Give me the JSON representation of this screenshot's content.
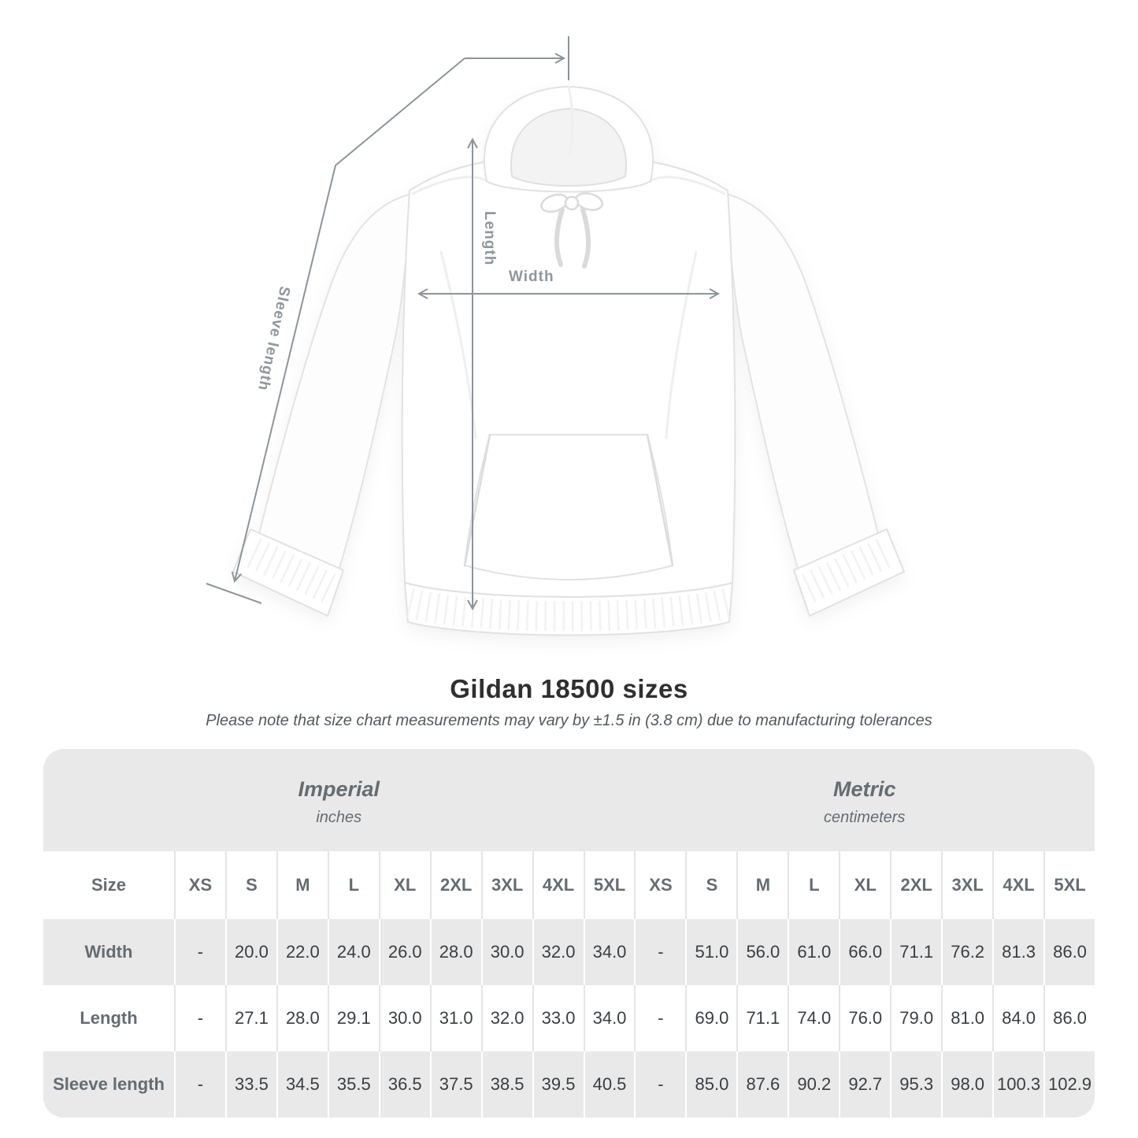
{
  "title": "Gildan 18500 sizes",
  "note": "Please note that size chart measurements may vary by ±1.5 in (3.8 cm) due to manufacturing tolerances",
  "diagram": {
    "labels": {
      "length": "Length",
      "width": "Width",
      "sleeve_length": "Sleeve length"
    }
  },
  "colors": {
    "arrow": "#8d949a",
    "mlabel": "#8f969c",
    "band": "#e9e9e9",
    "head-text": "#656c72",
    "value-text": "#3a3e42",
    "title-text": "#2f2f2f",
    "note-text": "#54585d"
  },
  "table": {
    "size_header": "Size",
    "unit_groups": [
      {
        "label": "Imperial",
        "sublabel": "inches"
      },
      {
        "label": "Metric",
        "sublabel": "centimeters"
      }
    ],
    "sizes": [
      "XS",
      "S",
      "M",
      "L",
      "XL",
      "2XL",
      "3XL",
      "4XL",
      "5XL"
    ],
    "rows": [
      {
        "label": "Width",
        "imperial": [
          "-",
          "20.0",
          "22.0",
          "24.0",
          "26.0",
          "28.0",
          "30.0",
          "32.0",
          "34.0"
        ],
        "metric": [
          "-",
          "51.0",
          "56.0",
          "61.0",
          "66.0",
          "71.1",
          "76.2",
          "81.3",
          "86.0"
        ]
      },
      {
        "label": "Length",
        "imperial": [
          "-",
          "27.1",
          "28.0",
          "29.1",
          "30.0",
          "31.0",
          "32.0",
          "33.0",
          "34.0"
        ],
        "metric": [
          "-",
          "69.0",
          "71.1",
          "74.0",
          "76.0",
          "79.0",
          "81.0",
          "84.0",
          "86.0"
        ]
      },
      {
        "label": "Sleeve length",
        "imperial": [
          "-",
          "33.5",
          "34.5",
          "35.5",
          "36.5",
          "37.5",
          "38.5",
          "39.5",
          "40.5"
        ],
        "metric": [
          "-",
          "85.0",
          "87.6",
          "90.2",
          "92.7",
          "95.3",
          "98.0",
          "100.3",
          "102.9"
        ]
      }
    ]
  }
}
